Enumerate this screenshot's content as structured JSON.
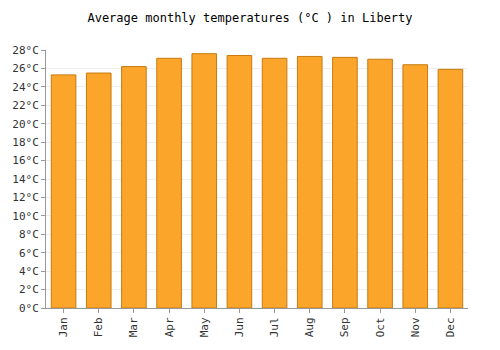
{
  "chart_data": {
    "type": "bar",
    "title": "Average monthly temperatures (°C ) in Liberty",
    "categories": [
      "Jan",
      "Feb",
      "Mar",
      "Apr",
      "May",
      "Jun",
      "Jul",
      "Aug",
      "Sep",
      "Oct",
      "Nov",
      "Dec"
    ],
    "values": [
      25.3,
      25.5,
      26.2,
      27.1,
      27.6,
      27.4,
      27.1,
      27.3,
      27.2,
      27.0,
      26.4,
      25.9
    ],
    "color": "#fba62a",
    "ylim": [
      0,
      28
    ],
    "yticks": [
      {
        "value": 0,
        "label": "0°C"
      },
      {
        "value": 2,
        "label": "2°C"
      },
      {
        "value": 4,
        "label": "4°C"
      },
      {
        "value": 6,
        "label": "6°C"
      },
      {
        "value": 8,
        "label": "8°C"
      },
      {
        "value": 10,
        "label": "10°C"
      },
      {
        "value": 12,
        "label": "12°C"
      },
      {
        "value": 14,
        "label": "14°C"
      },
      {
        "value": 16,
        "label": "16°C"
      },
      {
        "value": 18,
        "label": "18°C"
      },
      {
        "value": 20,
        "label": "20°C"
      },
      {
        "value": 22,
        "label": "22°C"
      },
      {
        "value": 24,
        "label": "24°C"
      },
      {
        "value": 26,
        "label": "26°C"
      },
      {
        "value": 28,
        "label": "28°C"
      }
    ],
    "grid": true
  }
}
